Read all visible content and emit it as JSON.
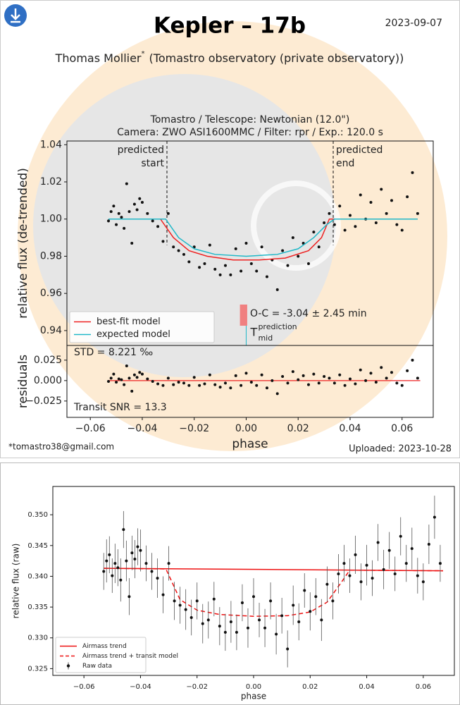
{
  "header": {
    "title": "Kepler – 17b",
    "date": "2023-09-07",
    "author": "Thomas Mollier",
    "author_mark": "*",
    "affiliation": "(Tomastro observatory (private observatory))",
    "email": "*tomastro38@gmail.com",
    "uploaded": "Uploaded: 2023-10-28"
  },
  "chart_data": [
    {
      "type": "scatter",
      "title": [
        "Tomastro / Telescope: Newtonian (12.0\")",
        "Camera: ZWO ASI1600MMC / Filter: rpr / Exp.: 120.0 s"
      ],
      "ylabel": "relative flux (de-trended)",
      "xlim": [
        -0.069,
        0.072
      ],
      "ylim": [
        0.932,
        1.042
      ],
      "yticks": [
        0.94,
        0.96,
        0.98,
        {
          "value": 1.0,
          "label": "1.00"
        },
        1.02,
        1.04
      ],
      "legend": "lower left",
      "series": [
        {
          "style": "points",
          "color": "#111111",
          "x": [
            -0.053,
            -0.052,
            -0.051,
            -0.05,
            -0.049,
            -0.048,
            -0.047,
            -0.046,
            -0.045,
            -0.044,
            -0.043,
            -0.042,
            -0.041,
            -0.04,
            -0.038,
            -0.036,
            -0.034,
            -0.032,
            -0.03,
            -0.028,
            -0.026,
            -0.024,
            -0.022,
            -0.02,
            -0.018,
            -0.016,
            -0.014,
            -0.012,
            -0.01,
            -0.008,
            -0.006,
            -0.004,
            -0.002,
            0.0,
            0.002,
            0.004,
            0.006,
            0.008,
            0.01,
            0.012,
            0.014,
            0.016,
            0.018,
            0.02,
            0.022,
            0.024,
            0.026,
            0.028,
            0.03,
            0.032,
            0.034,
            0.036,
            0.038,
            0.04,
            0.042,
            0.044,
            0.046,
            0.048,
            0.05,
            0.052,
            0.054,
            0.056,
            0.058,
            0.06,
            0.062,
            0.064,
            0.066
          ],
          "values": [
            0.999,
            1.004,
            1.007,
            0.997,
            1.003,
            1.001,
            0.995,
            1.019,
            1.004,
            0.987,
            1.008,
            1.005,
            1.011,
            1.009,
            1.003,
            0.999,
            0.996,
            0.988,
            1.003,
            0.985,
            0.983,
            0.981,
            0.977,
            0.985,
            0.974,
            0.976,
            0.986,
            0.973,
            0.97,
            0.975,
            0.97,
            0.984,
            0.972,
            0.987,
            0.976,
            0.972,
            0.985,
            0.969,
            0.978,
            0.962,
            0.983,
            0.975,
            0.99,
            0.98,
            0.987,
            0.976,
            0.993,
            0.985,
            0.998,
            1.003,
            0.997,
            1.007,
            0.994,
            1.002,
            0.996,
            1.013,
            1.0,
            1.009,
            0.998,
            1.016,
            1.003,
            1.01,
            0.997,
            0.994,
            1.012,
            1.025,
            1.003
          ]
        },
        {
          "style": "line",
          "name": "best-fit model",
          "color": "#ee2222",
          "x": [
            -0.053,
            -0.033,
            -0.028,
            -0.022,
            -0.015,
            -0.005,
            0.005,
            0.015,
            0.024,
            0.029,
            0.032,
            0.066
          ],
          "values": [
            1.0,
            1.0,
            0.99,
            0.983,
            0.98,
            0.978,
            0.978,
            0.979,
            0.983,
            0.99,
            1.0,
            1.0
          ]
        },
        {
          "style": "line",
          "name": "expected model",
          "color": "#20b8c8",
          "x": [
            -0.053,
            -0.031,
            -0.026,
            -0.02,
            -0.012,
            0.0,
            0.012,
            0.02,
            0.026,
            0.031,
            0.034,
            0.066
          ],
          "values": [
            1.0,
            1.0,
            0.99,
            0.984,
            0.981,
            0.98,
            0.981,
            0.984,
            0.99,
            0.997,
            1.0,
            1.0
          ]
        }
      ],
      "vlines": [
        {
          "x": -0.0305,
          "label": [
            "predicted",
            "start"
          ]
        },
        {
          "x": 0.0335,
          "label": [
            "predicted",
            "end"
          ]
        }
      ],
      "oc": {
        "text": "O-C = -3.04 ± 2.45 min",
        "value": -0.001,
        "error": 0.0014
      },
      "tmid": {
        "x": 0.0,
        "base": "T",
        "sup": "prediction",
        "sub": "mid"
      }
    },
    {
      "type": "scatter",
      "ylabel": "residuals",
      "xlabel": "phase",
      "xlim": [
        -0.069,
        0.072
      ],
      "ylim": [
        -0.045,
        0.043
      ],
      "xticks": [
        {
          "value": -0.06,
          "label": "−0.06"
        },
        {
          "value": -0.04,
          "label": "−0.04"
        },
        {
          "value": -0.02,
          "label": "−0.02"
        },
        {
          "value": 0,
          "label": "0.00"
        },
        0.02,
        0.04,
        0.06
      ],
      "yticks": [
        {
          "value": -0.025,
          "label": "−0.025"
        },
        {
          "value": 0,
          "label": "0.000"
        },
        0.025
      ],
      "hline": {
        "y": 0,
        "color": "#ee2222"
      },
      "notes": [
        "STD = 8.221 ‰",
        "Transit SNR = 13.3"
      ],
      "series": [
        {
          "style": "points",
          "color": "#111111",
          "x": [
            -0.053,
            -0.052,
            -0.051,
            -0.05,
            -0.049,
            -0.048,
            -0.047,
            -0.046,
            -0.045,
            -0.044,
            -0.043,
            -0.042,
            -0.041,
            -0.04,
            -0.038,
            -0.036,
            -0.034,
            -0.032,
            -0.03,
            -0.028,
            -0.026,
            -0.024,
            -0.022,
            -0.02,
            -0.018,
            -0.016,
            -0.014,
            -0.012,
            -0.01,
            -0.008,
            -0.006,
            -0.004,
            -0.002,
            0.0,
            0.002,
            0.004,
            0.006,
            0.008,
            0.01,
            0.012,
            0.014,
            0.016,
            0.018,
            0.02,
            0.022,
            0.024,
            0.026,
            0.028,
            0.03,
            0.032,
            0.034,
            0.036,
            0.038,
            0.04,
            0.042,
            0.044,
            0.046,
            0.048,
            0.05,
            0.052,
            0.054,
            0.056,
            0.058,
            0.06,
            0.062,
            0.064,
            0.066
          ],
          "values": [
            -0.001,
            0.003,
            0.008,
            -0.002,
            0.002,
            0.001,
            -0.005,
            0.018,
            0.003,
            -0.013,
            0.007,
            0.004,
            0.01,
            0.008,
            0.002,
            -0.001,
            -0.004,
            -0.006,
            0.003,
            -0.005,
            -0.002,
            -0.003,
            -0.006,
            0.004,
            -0.006,
            -0.004,
            0.007,
            -0.005,
            -0.008,
            -0.003,
            -0.009,
            0.006,
            -0.006,
            0.009,
            -0.002,
            -0.006,
            0.007,
            -0.009,
            0.0,
            -0.016,
            0.005,
            -0.003,
            0.011,
            0.001,
            0.006,
            -0.005,
            0.008,
            -0.003,
            0.005,
            0.003,
            -0.003,
            0.007,
            -0.006,
            0.002,
            -0.004,
            0.013,
            0.0,
            0.009,
            -0.002,
            0.016,
            0.003,
            0.01,
            -0.003,
            -0.006,
            0.012,
            0.025,
            0.003
          ]
        }
      ]
    },
    {
      "type": "scatter",
      "ylabel": "relative flux (raw)",
      "xlabel": "phase",
      "xlim": [
        -0.071,
        0.071
      ],
      "ylim": [
        0.3239,
        0.3546
      ],
      "xticks": [
        {
          "value": -0.06,
          "label": "−0.06"
        },
        {
          "value": -0.04,
          "label": "−0.04"
        },
        {
          "value": -0.02,
          "label": "−0.02"
        },
        {
          "value": 0,
          "label": "0.00"
        },
        0.02,
        0.04,
        0.06
      ],
      "yticks": [
        0.325,
        {
          "value": 0.33,
          "label": "0.330"
        },
        0.335,
        {
          "value": 0.34,
          "label": "0.340"
        },
        0.345,
        {
          "value": 0.35,
          "label": "0.350"
        }
      ],
      "legend": "lower left",
      "series": [
        {
          "style": "line",
          "name": "Airmass trend",
          "color": "#ee1111",
          "x": [
            -0.053,
            0.067
          ],
          "values": [
            0.3413,
            0.3409
          ]
        },
        {
          "style": "dashed",
          "name": "Airmass trend + transit model",
          "color": "#ee1111",
          "x": [
            -0.053,
            -0.031,
            -0.026,
            -0.02,
            -0.012,
            0.0,
            0.012,
            0.02,
            0.026,
            0.031,
            0.034,
            0.067
          ],
          "values": [
            0.3413,
            0.3412,
            0.3362,
            0.3345,
            0.3338,
            0.3335,
            0.3336,
            0.3342,
            0.3358,
            0.339,
            0.341,
            0.3409
          ]
        },
        {
          "style": "errorbar",
          "name": "Raw data",
          "color": "#111111",
          "x": [
            -0.053,
            -0.052,
            -0.051,
            -0.05,
            -0.049,
            -0.048,
            -0.047,
            -0.046,
            -0.045,
            -0.044,
            -0.043,
            -0.042,
            -0.041,
            -0.04,
            -0.038,
            -0.036,
            -0.034,
            -0.032,
            -0.03,
            -0.028,
            -0.026,
            -0.024,
            -0.022,
            -0.02,
            -0.018,
            -0.016,
            -0.014,
            -0.012,
            -0.01,
            -0.008,
            -0.006,
            -0.004,
            -0.002,
            0.0,
            0.002,
            0.004,
            0.006,
            0.008,
            0.01,
            0.012,
            0.014,
            0.016,
            0.018,
            0.02,
            0.022,
            0.024,
            0.026,
            0.028,
            0.03,
            0.032,
            0.034,
            0.036,
            0.038,
            0.04,
            0.042,
            0.044,
            0.046,
            0.048,
            0.05,
            0.052,
            0.054,
            0.056,
            0.058,
            0.06,
            0.062,
            0.064,
            0.066
          ],
          "values": [
            0.3408,
            0.3425,
            0.3435,
            0.3401,
            0.3421,
            0.3414,
            0.3394,
            0.3476,
            0.3425,
            0.3367,
            0.3438,
            0.3428,
            0.3448,
            0.3442,
            0.3421,
            0.3408,
            0.3397,
            0.337,
            0.3421,
            0.336,
            0.3353,
            0.3346,
            0.3333,
            0.336,
            0.3323,
            0.3329,
            0.3363,
            0.3319,
            0.3309,
            0.3326,
            0.3309,
            0.3357,
            0.3316,
            0.3367,
            0.3329,
            0.3316,
            0.336,
            0.3306,
            0.3336,
            0.3282,
            0.3353,
            0.3326,
            0.3377,
            0.3343,
            0.3367,
            0.3329,
            0.3387,
            0.336,
            0.3404,
            0.3421,
            0.3401,
            0.3435,
            0.3391,
            0.3418,
            0.3397,
            0.3455,
            0.3411,
            0.3442,
            0.3404,
            0.3465,
            0.3421,
            0.3445,
            0.3401,
            0.3391,
            0.3452,
            0.3496,
            0.3421
          ],
          "errors": [
            0.003,
            0.0035,
            0.003,
            0.0028,
            0.0032,
            0.003,
            0.0035,
            0.003,
            0.0033,
            0.003,
            0.0028,
            0.0031,
            0.003,
            0.0034,
            0.0029,
            0.003,
            0.0032,
            0.003,
            0.0028,
            0.0031,
            0.003,
            0.0033,
            0.0029,
            0.003,
            0.0032,
            0.003,
            0.0028,
            0.0031,
            0.003,
            0.0034,
            0.0029,
            0.003,
            0.0032,
            0.003,
            0.0028,
            0.0031,
            0.003,
            0.0033,
            0.0029,
            0.003,
            0.0032,
            0.003,
            0.0028,
            0.0031,
            0.003,
            0.0034,
            0.0029,
            0.003,
            0.0032,
            0.003,
            0.0028,
            0.0031,
            0.003,
            0.0033,
            0.0029,
            0.003,
            0.0032,
            0.003,
            0.0028,
            0.0031,
            0.003,
            0.0034,
            0.0029,
            0.003,
            0.0032,
            0.0035,
            0.003
          ]
        }
      ]
    }
  ]
}
